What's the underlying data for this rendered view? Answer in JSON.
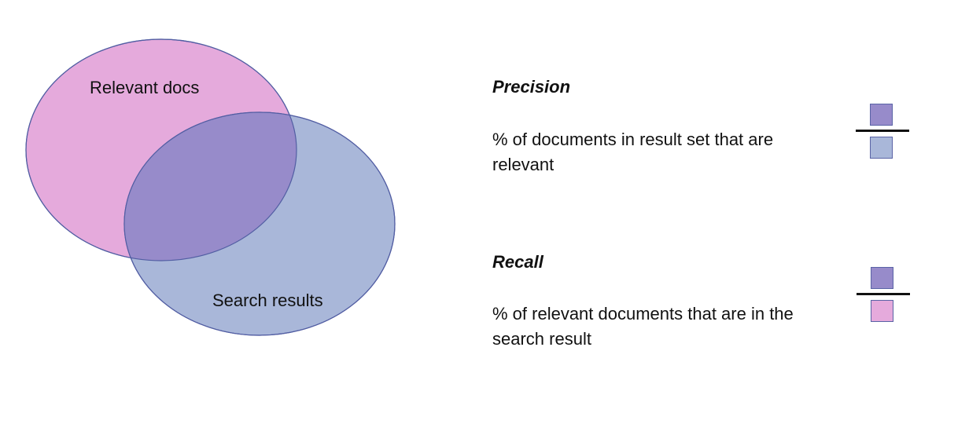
{
  "colors": {
    "relevant": "#e5aadc",
    "search": "#a9b7d9",
    "intersection": "#978bca",
    "stroke": "#525ea3"
  },
  "venn": {
    "relevant_label": "Relevant docs",
    "search_label": "Search results"
  },
  "precision": {
    "term": "Precision",
    "definition": "% of documents in result set that are relevant",
    "numerator": "intersection",
    "denominator": "search"
  },
  "recall": {
    "term": "Recall",
    "definition": "% of relevant documents that are in the search result",
    "numerator": "intersection",
    "denominator": "relevant"
  }
}
